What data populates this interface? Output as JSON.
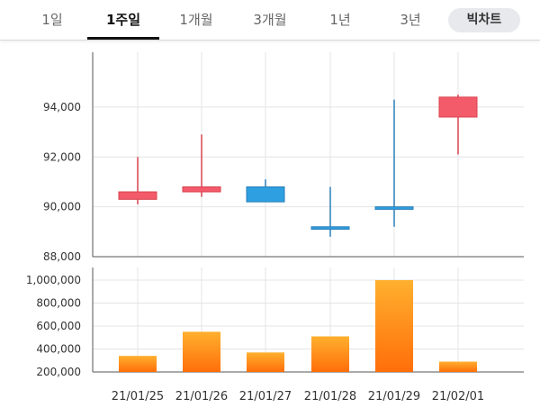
{
  "tabs": {
    "items": [
      {
        "label": "1일"
      },
      {
        "label": "1주일"
      },
      {
        "label": "1개월"
      },
      {
        "label": "3개월"
      },
      {
        "label": "1년"
      },
      {
        "label": "3년"
      }
    ],
    "active_index": 1,
    "bigchart_label": "빅차트"
  },
  "colors": {
    "up": "#f35b6a",
    "up_dark": "#d9434f",
    "down": "#2e9fe0",
    "down_dark": "#2a7fb8",
    "volume_top": "#ffb02e",
    "volume_bottom": "#ff6e0a"
  },
  "chart_data": [
    {
      "type": "candlestick",
      "categories": [
        "21/01/25",
        "21/01/26",
        "21/01/27",
        "21/01/28",
        "21/01/29",
        "21/02/01"
      ],
      "open": [
        90300,
        90600,
        90800,
        89200,
        90000,
        93600
      ],
      "high": [
        92000,
        92900,
        91100,
        90800,
        94300,
        94500
      ],
      "low": [
        90100,
        90400,
        90200,
        88800,
        89200,
        92100
      ],
      "close": [
        90600,
        90800,
        90200,
        89100,
        89900,
        94400
      ],
      "ylim": [
        88000,
        96200
      ],
      "yticks": [
        88000,
        90000,
        92000,
        94000
      ],
      "ytick_labels": [
        "88,000",
        "90,000",
        "92,000",
        "94,000"
      ],
      "grid": true
    },
    {
      "type": "bar",
      "categories": [
        "21/01/25",
        "21/01/26",
        "21/01/27",
        "21/01/28",
        "21/01/29",
        "21/02/01"
      ],
      "values": [
        340000,
        550000,
        370000,
        510000,
        1000000,
        290000
      ],
      "ylim": [
        200000,
        1110000
      ],
      "yticks": [
        200000,
        400000,
        600000,
        800000,
        1000000
      ],
      "ytick_labels": [
        "200,000",
        "400,000",
        "600,000",
        "800,000",
        "1,000,000"
      ],
      "grid": true
    }
  ]
}
